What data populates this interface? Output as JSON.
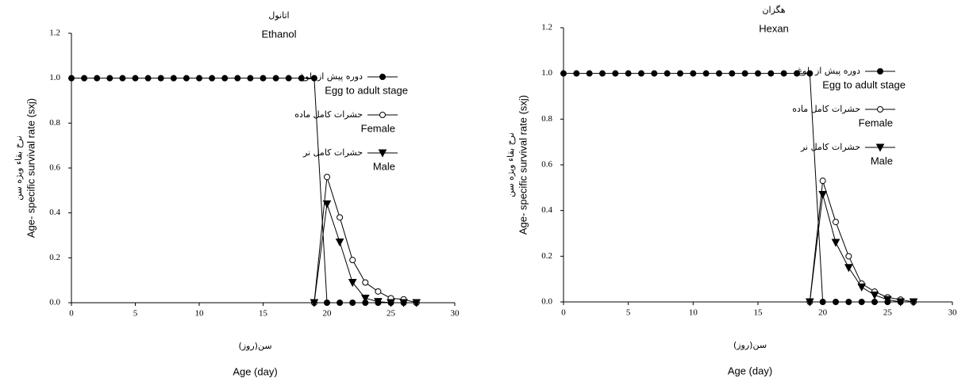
{
  "chart_data": [
    {
      "type": "line",
      "title_fa": "اتانول",
      "title": "Ethanol",
      "ylabel_fa": "نرخ بقاء ویژه سن",
      "ylabel": "Age- specific survival rate (sxj)",
      "xlabel_fa": "سن(روز)",
      "xlabel": "Age (day)",
      "xlim": [
        0,
        30
      ],
      "xticks": [
        0,
        5,
        10,
        15,
        20,
        25,
        30
      ],
      "ylim": [
        0,
        1.2
      ],
      "yticks": [
        {
          "value": 0,
          "label": "0.0"
        },
        0.2,
        0.4,
        0.6,
        0.8,
        {
          "value": 1,
          "label": "1.0"
        },
        1.2
      ],
      "legend": "upper right",
      "series": [
        {
          "name": "Egg to adult stage",
          "name_fa": "دوره پیش از بلوغ",
          "color": "#000000",
          "marker": "filled-circle",
          "x": [
            0,
            1,
            2,
            3,
            4,
            5,
            6,
            7,
            8,
            9,
            10,
            11,
            12,
            13,
            14,
            15,
            16,
            17,
            18,
            19,
            20,
            21,
            22,
            23,
            24,
            25,
            26,
            27
          ],
          "values": [
            1,
            1,
            1,
            1,
            1,
            1,
            1,
            1,
            1,
            1,
            1,
            1,
            1,
            1,
            1,
            1,
            1,
            1,
            1,
            1,
            0,
            0,
            0,
            0,
            0,
            0,
            0,
            0
          ]
        },
        {
          "name": "Female",
          "name_fa": "حشرات کامل ماده",
          "color": "#000000",
          "marker": "open-circle",
          "x": [
            19,
            20,
            21,
            22,
            23,
            24,
            25,
            26,
            27
          ],
          "values": [
            0,
            0.56,
            0.38,
            0.19,
            0.09,
            0.05,
            0.02,
            0.015,
            0
          ]
        },
        {
          "name": "Male",
          "name_fa": "حشرات کامل نر",
          "color": "#000000",
          "marker": "triangle-down",
          "x": [
            19,
            20,
            21,
            22,
            23,
            24,
            25,
            26,
            27
          ],
          "values": [
            0,
            0.44,
            0.27,
            0.09,
            0.02,
            0.005,
            0,
            0,
            0
          ]
        }
      ]
    },
    {
      "type": "line",
      "title_fa": "هگزان",
      "title": "Hexan",
      "ylabel_fa": "نرخ بقاء ویژه سن",
      "ylabel": "Age- specific survival rate (sxj)",
      "xlabel_fa": "سن(روز)",
      "xlabel": "Age (day)",
      "xlim": [
        0,
        30
      ],
      "xticks": [
        0,
        5,
        10,
        15,
        20,
        25,
        30
      ],
      "ylim": [
        0,
        1.2
      ],
      "yticks": [
        {
          "value": 0,
          "label": "0.0"
        },
        0.2,
        0.4,
        0.6,
        0.8,
        {
          "value": 1,
          "label": "1.0"
        },
        1.2
      ],
      "legend": "upper right",
      "series": [
        {
          "name": "Egg to adult stage",
          "name_fa": "دوره پیش از بلوغ",
          "color": "#000000",
          "marker": "filled-circle",
          "x": [
            0,
            1,
            2,
            3,
            4,
            5,
            6,
            7,
            8,
            9,
            10,
            11,
            12,
            13,
            14,
            15,
            16,
            17,
            18,
            19,
            20,
            21,
            22,
            23,
            24,
            25,
            26,
            27
          ],
          "values": [
            1,
            1,
            1,
            1,
            1,
            1,
            1,
            1,
            1,
            1,
            1,
            1,
            1,
            1,
            1,
            1,
            1,
            1,
            1,
            1,
            0,
            0,
            0,
            0,
            0,
            0,
            0,
            0
          ]
        },
        {
          "name": "Female",
          "name_fa": "حشرات کامل ماده",
          "color": "#000000",
          "marker": "open-circle",
          "x": [
            19,
            20,
            21,
            22,
            23,
            24,
            25,
            26,
            27
          ],
          "values": [
            0,
            0.53,
            0.35,
            0.2,
            0.08,
            0.045,
            0.02,
            0.01,
            0
          ]
        },
        {
          "name": "Male",
          "name_fa": "حشرات کامل نر",
          "color": "#000000",
          "marker": "triangle-down",
          "x": [
            19,
            20,
            21,
            22,
            23,
            24,
            25,
            26,
            27
          ],
          "values": [
            0,
            0.47,
            0.26,
            0.15,
            0.065,
            0.03,
            0.01,
            0,
            0
          ]
        }
      ]
    }
  ]
}
